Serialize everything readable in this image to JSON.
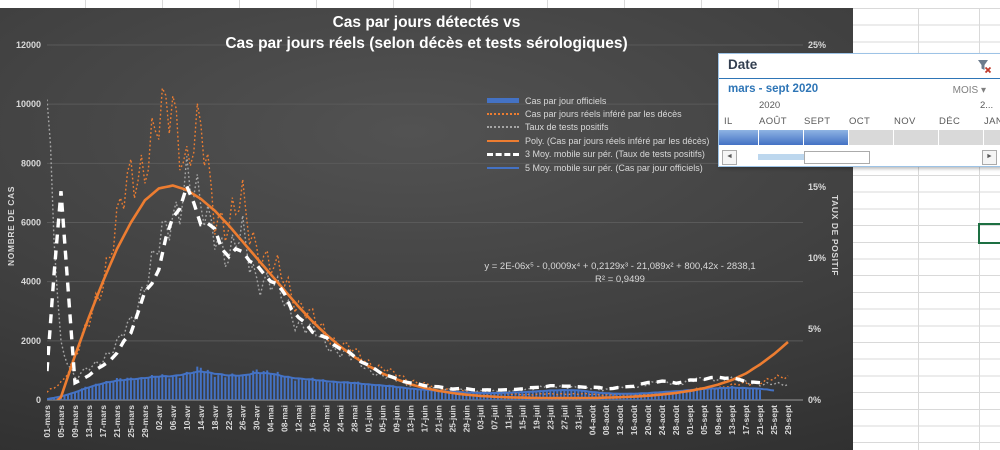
{
  "colors": {
    "blue": "#4472C4",
    "orange": "#ED7D31",
    "gray_dots": "#A6A6A6",
    "white": "#FFFFFF",
    "chart_text": "#D9D9D9",
    "grid_dark": "#5a5a5a",
    "sheet_grid": "#d9d9d9",
    "selection_green": "#1d6f42",
    "slicer_blue": "#2E75B6"
  },
  "chart": {
    "title_line1": "Cas par jours détectés vs",
    "title_line2": "Cas par jours réels (selon décès et tests sérologiques)",
    "left_axis": {
      "title": "NOMBRE DE CAS",
      "ticks": [
        "0",
        "2000",
        "4000",
        "6000",
        "8000",
        "10000",
        "12000"
      ]
    },
    "right_axis": {
      "title": "TAUX DE POSITIF",
      "ticks": [
        "0%",
        "5%",
        "10%",
        "15%",
        "20%",
        "25%"
      ]
    },
    "legend": [
      {
        "label": "Cas par jour officiels",
        "swatch": "bar",
        "color": "#4472C4"
      },
      {
        "label": "Cas par jours réels inféré par les décès",
        "swatch": "dotted",
        "color": "#ED7D31"
      },
      {
        "label": "Taux de tests positifs",
        "swatch": "dotted",
        "color": "#A6A6A6"
      },
      {
        "label": "Poly. (Cas par jours réels inféré par les décès)",
        "swatch": "solid",
        "color": "#ED7D31"
      },
      {
        "label": "3 Moy. mobile sur pér. (Taux de tests positifs)",
        "swatch": "dashed",
        "color": "#FFFFFF"
      },
      {
        "label": "5 Moy. mobile sur pér. (Cas par jour officiels)",
        "swatch": "thin",
        "color": "#4472C4"
      }
    ],
    "equation_line1": "y = 2E-06x⁵ - 0,0009x⁴ + 0,2129x³ - 21,089x² + 800,42x - 2838,1",
    "equation_line2": "R² = 0,9499"
  },
  "chart_data": {
    "type": "combo",
    "left_ylim": [
      0,
      12000
    ],
    "right_ylim": [
      0,
      25
    ],
    "grid": "horizontal",
    "legend_position": "upper-center-right",
    "categories": [
      "01-mars",
      "05-mars",
      "09-mars",
      "13-mars",
      "17-mars",
      "21-mars",
      "25-mars",
      "29-mars",
      "02-avr",
      "06-avr",
      "10-avr",
      "14-avr",
      "18-avr",
      "22-avr",
      "26-avr",
      "30-avr",
      "04-mai",
      "08-mai",
      "12-mai",
      "16-mai",
      "20-mai",
      "24-mai",
      "28-mai",
      "01-juin",
      "05-juin",
      "09-juin",
      "13-juin",
      "17-juin",
      "21-juin",
      "25-juin",
      "29-juin",
      "03-juil",
      "07-juil",
      "11-juil",
      "15-juil",
      "19-juil",
      "23-juil",
      "27-juil",
      "31-juil",
      "04-août",
      "08-août",
      "12-août",
      "16-août",
      "20-août",
      "24-août",
      "28-août",
      "01-sept",
      "05-sept",
      "09-sept",
      "13-sept",
      "17-sept",
      "21-sept",
      "25-sept",
      "29-sept"
    ],
    "series": [
      {
        "name": "Cas par jour officiels",
        "type": "bar",
        "axis": "left",
        "color": "#4472C4",
        "values": [
          40,
          130,
          280,
          450,
          600,
          680,
          720,
          760,
          800,
          780,
          900,
          1050,
          880,
          820,
          780,
          1050,
          900,
          800,
          720,
          680,
          640,
          600,
          580,
          540,
          500,
          450,
          400,
          350,
          310,
          280,
          260,
          240,
          230,
          240,
          260,
          290,
          320,
          350,
          330,
          260,
          220,
          200,
          210,
          230,
          260,
          300,
          340,
          380,
          410,
          430,
          400,
          380,
          null,
          null
        ]
      },
      {
        "name": "Cas par jours réels inféré par les décès",
        "type": "line-dotted",
        "axis": "left",
        "color": "#ED7D31",
        "values": [
          250,
          600,
          1400,
          2600,
          4200,
          5800,
          7600,
          8200,
          9000,
          10250,
          8000,
          8900,
          6600,
          5800,
          6600,
          5300,
          4400,
          4100,
          3300,
          2700,
          2250,
          1900,
          1600,
          1300,
          1050,
          850,
          680,
          520,
          420,
          350,
          300,
          260,
          230,
          200,
          190,
          190,
          200,
          210,
          200,
          190,
          180,
          180,
          190,
          210,
          240,
          280,
          330,
          380,
          430,
          490,
          550,
          620,
          700,
          790
        ]
      },
      {
        "name": "Taux de tests positifs",
        "type": "line-dotted",
        "axis": "right",
        "color": "#A6A6A6",
        "values": [
          20,
          4,
          1.5,
          2.2,
          3.0,
          3.8,
          5.5,
          8.5,
          10.5,
          13,
          16,
          13,
          12.5,
          9.8,
          11.5,
          8.8,
          8.0,
          7.0,
          5.4,
          4.8,
          4.0,
          3.4,
          2.8,
          2.2,
          1.7,
          1.4,
          1.1,
          0.9,
          0.8,
          0.75,
          0.7,
          0.65,
          0.65,
          0.6,
          0.75,
          0.85,
          0.95,
          1.0,
          0.85,
          0.8,
          0.75,
          0.85,
          0.95,
          1.15,
          1.25,
          1.15,
          1.35,
          1.45,
          1.55,
          1.45,
          1.25,
          1.15,
          1.1,
          1.05
        ]
      },
      {
        "name": "Poly. (Cas par jours réels inféré par les décès)",
        "type": "line",
        "axis": "left",
        "color": "#ED7D31",
        "values": [
          -400,
          100,
          1500,
          2800,
          4000,
          5100,
          6000,
          6750,
          7150,
          7250,
          7100,
          6800,
          6400,
          5900,
          5350,
          4800,
          4250,
          3700,
          3150,
          2650,
          2200,
          1800,
          1450,
          1150,
          900,
          700,
          530,
          410,
          310,
          235,
          180,
          140,
          110,
          90,
          80,
          70,
          65,
          65,
          65,
          70,
          80,
          95,
          115,
          145,
          185,
          240,
          310,
          400,
          520,
          680,
          900,
          1200,
          1550,
          1960
        ]
      },
      {
        "name": "3 Moy. mobile sur pér. (Taux de tests positifs)",
        "type": "line-dashed",
        "axis": "right",
        "color": "#FFFFFF",
        "values": [
          2,
          15,
          1.2,
          1.8,
          2.4,
          3.2,
          4.8,
          7.5,
          9.5,
          13,
          14.5,
          12.5,
          11.8,
          10.3,
          10.8,
          9.2,
          8.4,
          7.3,
          5.8,
          5.0,
          4.3,
          3.6,
          3.0,
          2.4,
          1.9,
          1.5,
          1.2,
          1.0,
          0.9,
          0.8,
          0.8,
          0.7,
          0.7,
          0.7,
          0.8,
          0.9,
          1.0,
          1.0,
          0.9,
          0.9,
          0.8,
          0.9,
          1.0,
          1.2,
          1.3,
          1.2,
          1.4,
          1.5,
          1.6,
          1.5,
          1.3,
          1.2,
          null,
          null
        ]
      },
      {
        "name": "5 Moy. mobile sur pér. (Cas par jour officiels)",
        "type": "line",
        "axis": "left",
        "color": "#4472C4",
        "values": [
          30,
          120,
          260,
          430,
          570,
          650,
          700,
          750,
          790,
          810,
          890,
          960,
          900,
          830,
          820,
          930,
          890,
          790,
          730,
          680,
          640,
          600,
          570,
          530,
          490,
          440,
          390,
          345,
          305,
          280,
          255,
          240,
          235,
          245,
          265,
          290,
          320,
          340,
          325,
          270,
          230,
          210,
          215,
          235,
          265,
          300,
          340,
          375,
          400,
          415,
          400,
          385,
          320,
          null
        ]
      }
    ]
  },
  "slicer": {
    "title": "Date",
    "selection_label": "mars - sept 2020",
    "period_dropdown": "MOIS",
    "dropdown_arrow": "▾",
    "year_left": "2020",
    "year_right": "2...",
    "months": [
      {
        "label": "IL",
        "selected": true
      },
      {
        "label": "AOÛT",
        "selected": true
      },
      {
        "label": "SEPT",
        "selected": true
      },
      {
        "label": "OCT",
        "selected": false
      },
      {
        "label": "NOV",
        "selected": false
      },
      {
        "label": "DÉC",
        "selected": false
      },
      {
        "label": "JAN",
        "selected": false
      }
    ],
    "scroll_left": "◄",
    "scroll_right": "►"
  }
}
